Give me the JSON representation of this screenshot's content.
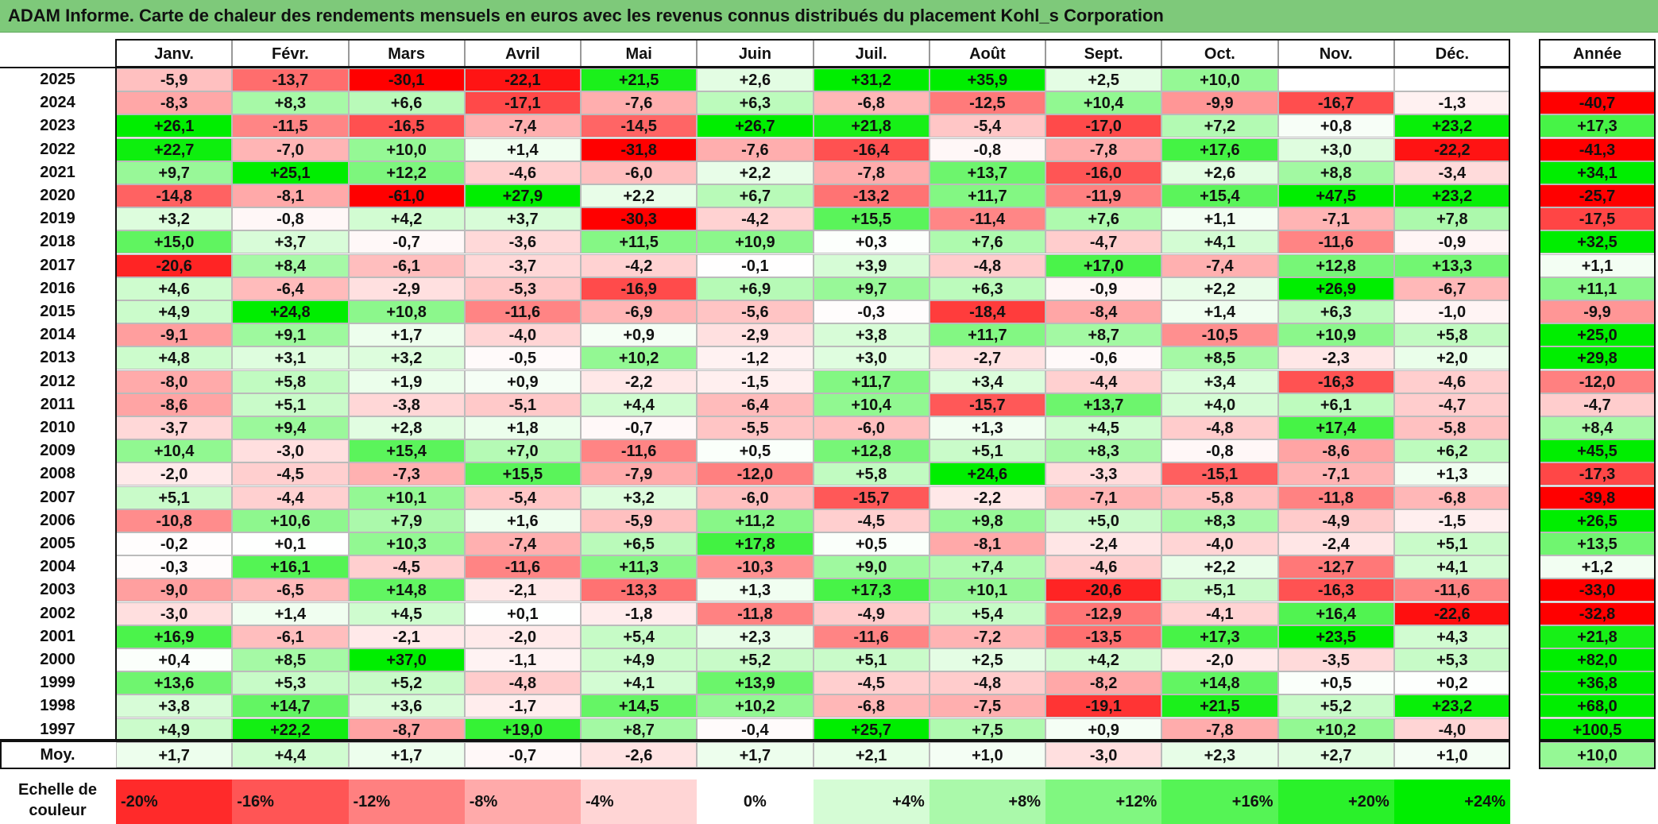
{
  "title": "ADAM Informe. Carte de chaleur des rendements mensuels en euros avec les revenus connus distribués du placement Kohl_s Corporation",
  "chart_data": {
    "type": "heatmap",
    "months": [
      "Janv.",
      "Févr.",
      "Mars",
      "Avril",
      "Mai",
      "Juin",
      "Juil.",
      "Août",
      "Sept.",
      "Oct.",
      "Nov.",
      "Déc."
    ],
    "annual_header": "Année",
    "rows": [
      {
        "year": "2025",
        "values": [
          "-5,9",
          "-13,7",
          "-30,1",
          "-22,1",
          "+21,5",
          "+2,6",
          "+31,2",
          "+35,9",
          "+2,5",
          "+10,0",
          "",
          ""
        ],
        "annual": ""
      },
      {
        "year": "2024",
        "values": [
          "-8,3",
          "+8,3",
          "+6,6",
          "-17,1",
          "-7,6",
          "+6,3",
          "-6,8",
          "-12,5",
          "+10,4",
          "-9,9",
          "-16,7",
          "-1,3"
        ],
        "annual": "-40,7"
      },
      {
        "year": "2023",
        "values": [
          "+26,1",
          "-11,5",
          "-16,5",
          "-7,4",
          "-14,5",
          "+26,7",
          "+21,8",
          "-5,4",
          "-17,0",
          "+7,2",
          "+0,8",
          "+23,2"
        ],
        "annual": "+17,3"
      },
      {
        "year": "2022",
        "values": [
          "+22,7",
          "-7,0",
          "+10,0",
          "+1,4",
          "-31,8",
          "-7,6",
          "-16,4",
          "-0,8",
          "-7,8",
          "+17,6",
          "+3,0",
          "-22,2"
        ],
        "annual": "-41,3"
      },
      {
        "year": "2021",
        "values": [
          "+9,7",
          "+25,1",
          "+12,2",
          "-4,6",
          "-6,0",
          "+2,2",
          "-7,8",
          "+13,7",
          "-16,0",
          "+2,6",
          "+8,8",
          "-3,4"
        ],
        "annual": "+34,1"
      },
      {
        "year": "2020",
        "values": [
          "-14,8",
          "-8,1",
          "-61,0",
          "+27,9",
          "+2,2",
          "+6,7",
          "-13,2",
          "+11,7",
          "-11,9",
          "+15,4",
          "+47,5",
          "+23,2"
        ],
        "annual": "-25,7"
      },
      {
        "year": "2019",
        "values": [
          "+3,2",
          "-0,8",
          "+4,2",
          "+3,7",
          "-30,3",
          "-4,2",
          "+15,5",
          "-11,4",
          "+7,6",
          "+1,1",
          "-7,1",
          "+7,8"
        ],
        "annual": "-17,5"
      },
      {
        "year": "2018",
        "values": [
          "+15,0",
          "+3,7",
          "-0,7",
          "-3,6",
          "+11,5",
          "+10,9",
          "+0,3",
          "+7,6",
          "-4,7",
          "+4,1",
          "-11,6",
          "-0,9"
        ],
        "annual": "+32,5"
      },
      {
        "year": "2017",
        "values": [
          "-20,6",
          "+8,4",
          "-6,1",
          "-3,7",
          "-4,2",
          "-0,1",
          "+3,9",
          "-4,8",
          "+17,0",
          "-7,4",
          "+12,8",
          "+13,3"
        ],
        "annual": "+1,1"
      },
      {
        "year": "2016",
        "values": [
          "+4,6",
          "-6,4",
          "-2,9",
          "-5,3",
          "-16,9",
          "+6,9",
          "+9,7",
          "+6,3",
          "-0,9",
          "+2,2",
          "+26,9",
          "-6,7"
        ],
        "annual": "+11,1"
      },
      {
        "year": "2015",
        "values": [
          "+4,9",
          "+24,8",
          "+10,8",
          "-11,6",
          "-6,9",
          "-5,6",
          "-0,3",
          "-18,4",
          "-8,4",
          "+1,4",
          "+6,3",
          "-1,0"
        ],
        "annual": "-9,9"
      },
      {
        "year": "2014",
        "values": [
          "-9,1",
          "+9,1",
          "+1,7",
          "-4,0",
          "+0,9",
          "-2,9",
          "+3,8",
          "+11,7",
          "+8,7",
          "-10,5",
          "+10,9",
          "+5,8"
        ],
        "annual": "+25,0"
      },
      {
        "year": "2013",
        "values": [
          "+4,8",
          "+3,1",
          "+3,2",
          "-0,5",
          "+10,2",
          "-1,2",
          "+3,0",
          "-2,7",
          "-0,6",
          "+8,5",
          "-2,3",
          "+2,0"
        ],
        "annual": "+29,8"
      },
      {
        "year": "2012",
        "values": [
          "-8,0",
          "+5,8",
          "+1,9",
          "+0,9",
          "-2,2",
          "-1,5",
          "+11,7",
          "+3,4",
          "-4,4",
          "+3,4",
          "-16,3",
          "-4,6"
        ],
        "annual": "-12,0"
      },
      {
        "year": "2011",
        "values": [
          "-8,6",
          "+5,1",
          "-3,8",
          "-5,1",
          "+4,4",
          "-6,4",
          "+10,4",
          "-15,7",
          "+13,7",
          "+4,0",
          "+6,1",
          "-4,7"
        ],
        "annual": "-4,7"
      },
      {
        "year": "2010",
        "values": [
          "-3,7",
          "+9,4",
          "+2,8",
          "+1,8",
          "-0,7",
          "-5,5",
          "-6,0",
          "+1,3",
          "+4,5",
          "-4,8",
          "+17,4",
          "-5,8"
        ],
        "annual": "+8,4"
      },
      {
        "year": "2009",
        "values": [
          "+10,4",
          "-3,0",
          "+15,4",
          "+7,0",
          "-11,6",
          "+0,5",
          "+12,8",
          "+5,1",
          "+8,3",
          "-0,8",
          "-8,6",
          "+6,2"
        ],
        "annual": "+45,5"
      },
      {
        "year": "2008",
        "values": [
          "-2,0",
          "-4,5",
          "-7,3",
          "+15,5",
          "-7,9",
          "-12,0",
          "+5,8",
          "+24,6",
          "-3,3",
          "-15,1",
          "-7,1",
          "+1,3"
        ],
        "annual": "-17,3"
      },
      {
        "year": "2007",
        "values": [
          "+5,1",
          "-4,4",
          "+10,1",
          "-5,4",
          "+3,2",
          "-6,0",
          "-15,7",
          "-2,2",
          "-7,1",
          "-5,8",
          "-11,8",
          "-6,8"
        ],
        "annual": "-39,8"
      },
      {
        "year": "2006",
        "values": [
          "-10,8",
          "+10,6",
          "+7,9",
          "+1,6",
          "-5,9",
          "+11,2",
          "-4,5",
          "+9,8",
          "+5,0",
          "+8,3",
          "-4,9",
          "-1,5"
        ],
        "annual": "+26,5"
      },
      {
        "year": "2005",
        "values": [
          "-0,2",
          "+0,1",
          "+10,3",
          "-7,4",
          "+6,5",
          "+17,8",
          "+0,5",
          "-8,1",
          "-2,4",
          "-4,0",
          "-2,4",
          "+5,1"
        ],
        "annual": "+13,5"
      },
      {
        "year": "2004",
        "values": [
          "-0,3",
          "+16,1",
          "-4,5",
          "-11,6",
          "+11,3",
          "-10,3",
          "+9,0",
          "+7,4",
          "-4,6",
          "+2,2",
          "-12,7",
          "+4,1"
        ],
        "annual": "+1,2"
      },
      {
        "year": "2003",
        "values": [
          "-9,0",
          "-6,5",
          "+14,8",
          "-2,1",
          "-13,3",
          "+1,3",
          "+17,3",
          "+10,1",
          "-20,6",
          "+5,1",
          "-16,3",
          "-11,6"
        ],
        "annual": "-33,0"
      },
      {
        "year": "2002",
        "values": [
          "-3,0",
          "+1,4",
          "+4,5",
          "+0,1",
          "-1,8",
          "-11,8",
          "-4,9",
          "+5,4",
          "-12,9",
          "-4,1",
          "+16,4",
          "-22,6"
        ],
        "annual": "-32,8"
      },
      {
        "year": "2001",
        "values": [
          "+16,9",
          "-6,1",
          "-2,1",
          "-2,0",
          "+5,4",
          "+2,3",
          "-11,6",
          "-7,2",
          "-13,5",
          "+17,3",
          "+23,5",
          "+4,3"
        ],
        "annual": "+21,8"
      },
      {
        "year": "2000",
        "values": [
          "+0,4",
          "+8,5",
          "+37,0",
          "-1,1",
          "+4,9",
          "+5,2",
          "+5,1",
          "+2,5",
          "+4,2",
          "-2,0",
          "-3,5",
          "+5,3"
        ],
        "annual": "+82,0"
      },
      {
        "year": "1999",
        "values": [
          "+13,6",
          "+5,3",
          "+5,2",
          "-4,8",
          "+4,1",
          "+13,9",
          "-4,5",
          "-4,8",
          "-8,2",
          "+14,8",
          "+0,5",
          "+0,2"
        ],
        "annual": "+36,8"
      },
      {
        "year": "1998",
        "values": [
          "+3,8",
          "+14,7",
          "+3,6",
          "-1,7",
          "+14,5",
          "+10,2",
          "-6,8",
          "-7,5",
          "-19,1",
          "+21,5",
          "+5,2",
          "+23,2"
        ],
        "annual": "+68,0"
      },
      {
        "year": "1997",
        "values": [
          "+4,9",
          "+22,2",
          "-8,7",
          "+19,0",
          "+8,7",
          "-0,4",
          "+25,7",
          "+7,5",
          "+0,9",
          "-7,8",
          "+10,2",
          "-4,0"
        ],
        "annual": "+100,5"
      }
    ],
    "average": {
      "label": "Moy.",
      "values": [
        "+1,7",
        "+4,4",
        "+1,7",
        "-0,7",
        "-2,6",
        "+1,7",
        "+2,1",
        "+1,0",
        "-3,0",
        "+2,3",
        "+2,7",
        "+1,0"
      ],
      "annual": "+10,0"
    },
    "scale": {
      "label_line1": "Echelle de",
      "label_line2": "couleur",
      "steps": [
        "-20%",
        "-16%",
        "-12%",
        "-8%",
        "-4%",
        "0%",
        "+4%",
        "+8%",
        "+12%",
        "+16%",
        "+20%",
        "+24%"
      ],
      "step_values": [
        -20,
        -16,
        -12,
        -8,
        -4,
        0,
        4,
        8,
        12,
        16,
        20,
        24
      ]
    },
    "colors": {
      "negative_max": "#ff0000",
      "neutral": "#ffffff",
      "positive_max": "#00ee00",
      "title_bar": "#7ec97a"
    }
  }
}
